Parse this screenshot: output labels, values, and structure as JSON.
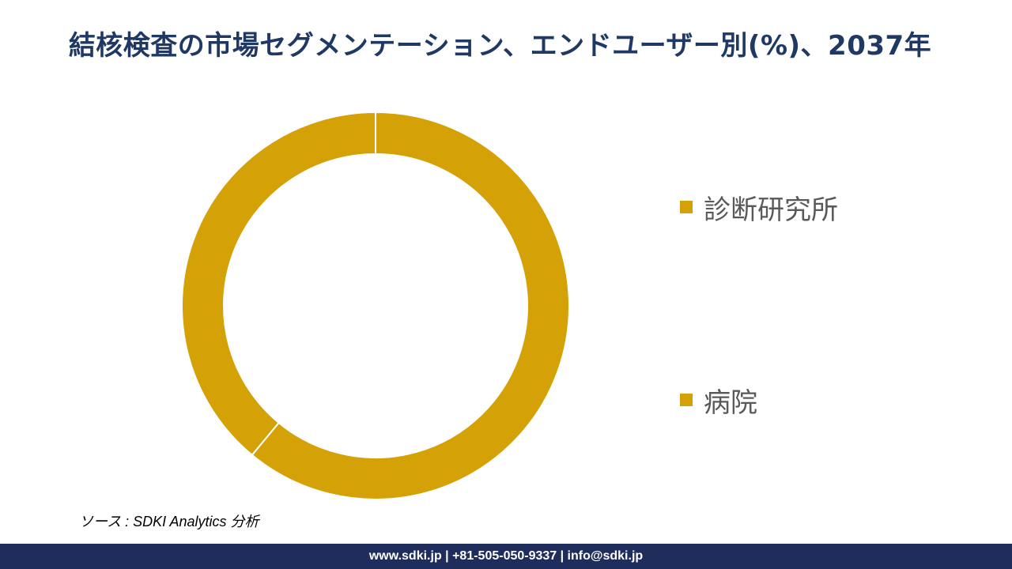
{
  "title": "結核検査の市場セグメンテーション、エンドユーザー別(%)、2037年",
  "source": "ソース : SDKI Analytics 分析",
  "footer": "www.sdki.jp | +81-505-050-9337 | info@sdki.jp",
  "colors": {
    "title": "#1f3864",
    "slice": "#d4a106",
    "footer_bg": "#1f2d5c",
    "legend_text": "#595959"
  },
  "chart_data": {
    "type": "pie",
    "variant": "donut",
    "title": "結核検査の市場セグメンテーション、エンドユーザー別(%)、2037年",
    "categories": [
      "診断研究所",
      "病院"
    ],
    "values": [
      61,
      39
    ],
    "colors": [
      "#d4a106",
      "#d4a106"
    ],
    "legend_placement": "right",
    "data_labels": false
  }
}
